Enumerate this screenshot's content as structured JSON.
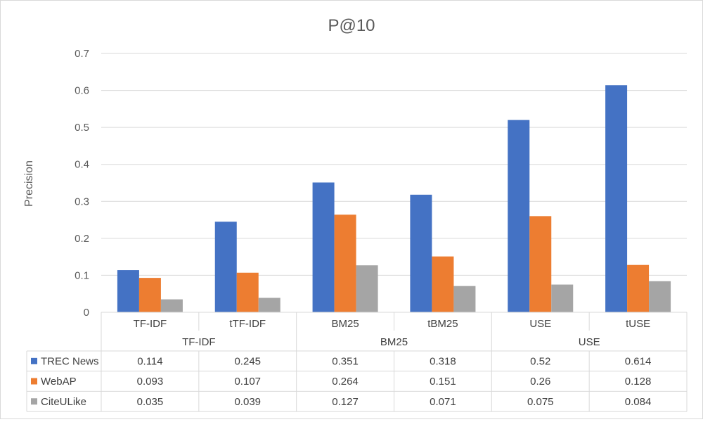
{
  "chart_data": {
    "type": "bar",
    "title": "P@10",
    "ylabel": "Precision",
    "ylim": [
      0,
      0.7
    ],
    "yticks": [
      "0",
      "0.1",
      "0.2",
      "0.3",
      "0.4",
      "0.5",
      "0.6",
      "0.7"
    ],
    "grid": true,
    "categories": [
      "TF-IDF",
      "tTF-IDF",
      "BM25",
      "tBM25",
      "USE",
      "tUSE"
    ],
    "groups": [
      {
        "label": "TF-IDF",
        "span": 2
      },
      {
        "label": "BM25",
        "span": 2
      },
      {
        "label": "USE",
        "span": 2
      }
    ],
    "series": [
      {
        "name": "TREC News",
        "color": "#4472c4",
        "values": [
          0.114,
          0.245,
          0.351,
          0.318,
          0.52,
          0.614
        ],
        "labels": [
          "0.114",
          "0.245",
          "0.351",
          "0.318",
          "0.52",
          "0.614"
        ]
      },
      {
        "name": "WebAP",
        "color": "#ed7d31",
        "values": [
          0.093,
          0.107,
          0.264,
          0.151,
          0.26,
          0.128
        ],
        "labels": [
          "0.093",
          "0.107",
          "0.264",
          "0.151",
          "0.26",
          "0.128"
        ]
      },
      {
        "name": "CiteULike",
        "color": "#a5a5a5",
        "values": [
          0.035,
          0.039,
          0.127,
          0.071,
          0.075,
          0.084
        ],
        "labels": [
          "0.035",
          "0.039",
          "0.127",
          "0.071",
          "0.075",
          "0.084"
        ]
      }
    ],
    "legend": "data-table"
  }
}
